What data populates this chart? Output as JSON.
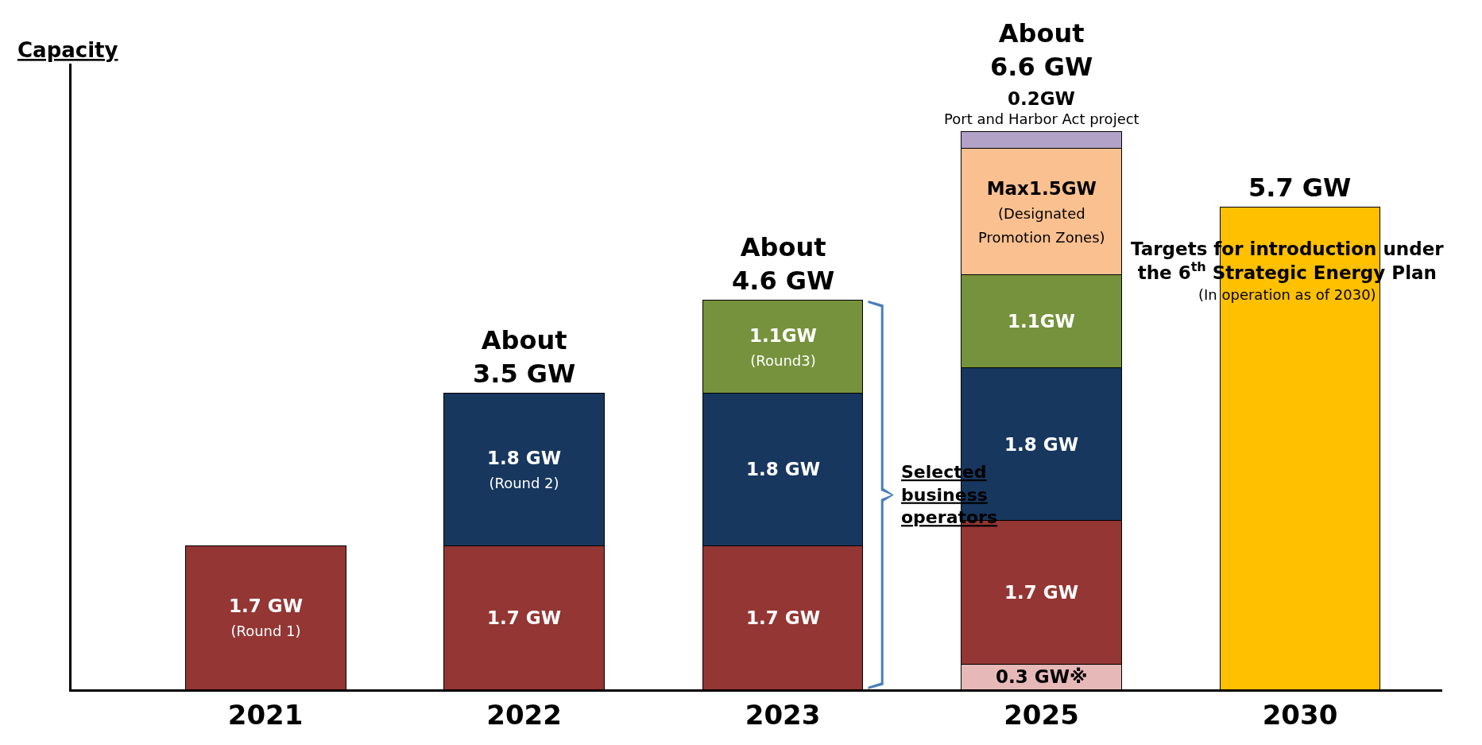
{
  "chart_data": {
    "type": "bar",
    "stacked": true,
    "categories": [
      "2021",
      "2022",
      "2023",
      "2025",
      "2030"
    ],
    "ylabel": "Capacity",
    "ylim": [
      0,
      7.4
    ],
    "tick_labels": "x",
    "grid": false,
    "series": [
      {
        "color": "#e6b9b8",
        "values": [
          null,
          null,
          null,
          0.3,
          null
        ],
        "value_labels": [
          null,
          null,
          null,
          "0.3 GW※",
          null
        ]
      },
      {
        "color": "#943634",
        "values": [
          1.7,
          1.7,
          1.7,
          1.7,
          null
        ],
        "value_labels": [
          "1.7 GW\n(Round 1)",
          "1.7 GW",
          "1.7 GW",
          "1.7 GW",
          null
        ]
      },
      {
        "color": "#17375e",
        "values": [
          null,
          1.8,
          1.8,
          1.8,
          null
        ],
        "value_labels": [
          null,
          "1.8 GW\n(Round 2)",
          "1.8 GW",
          "1.8 GW",
          null
        ]
      },
      {
        "color": "#76923c",
        "values": [
          null,
          null,
          1.1,
          1.1,
          null
        ],
        "value_labels": [
          null,
          null,
          "1.1GW\n(Round3)",
          "1.1GW",
          null
        ]
      },
      {
        "color": "#fac090",
        "values": [
          null,
          null,
          null,
          1.5,
          null
        ],
        "value_labels": [
          null,
          null,
          null,
          "Max1.5GW\n(Designated\nPromotion Zones)",
          null
        ]
      },
      {
        "color": "#b3a2c7",
        "values": [
          null,
          null,
          null,
          0.2,
          null
        ],
        "value_labels": [
          null,
          null,
          null,
          "0.2GW\nPort and Harbor Act project",
          null
        ]
      },
      {
        "color": "#ffc000",
        "values": [
          null,
          null,
          null,
          null,
          5.7
        ]
      }
    ],
    "totals": [
      null,
      "About\n3.5 GW",
      "About\n4.6 GW",
      "About\n6.6 GW",
      "5.7 GW"
    ],
    "annotations": [
      "Selected\nbusiness\noperators",
      "Targets for introduction under\nthe 6$^{th}$ Strategic Energy Plan",
      "(In operation as of 2030)"
    ]
  }
}
